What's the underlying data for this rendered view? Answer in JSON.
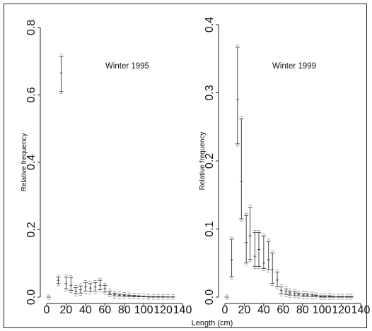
{
  "chart_data": [
    {
      "type": "scatter",
      "style": "point estimates with error bars",
      "title": "Winter 1995",
      "xlabel": "Length (cm)",
      "ylabel": "Relative frequency",
      "xlim": [
        0,
        140
      ],
      "ylim": [
        0,
        0.8
      ],
      "xticks": [
        "0",
        "20",
        "40",
        "60",
        "80",
        "100",
        "120",
        "140"
      ],
      "yticks": [
        "0.0",
        "0.2",
        "0.4",
        "0.6",
        "0.8"
      ],
      "grid": false,
      "series": [
        {
          "points": [
            {
              "x": 2,
              "y": 0.0,
              "lo": 0.0,
              "hi": 0.0
            },
            {
              "x": 12,
              "y": 0.05,
              "lo": 0.04,
              "hi": 0.06
            },
            {
              "x": 15,
              "y": 0.665,
              "lo": 0.61,
              "hi": 0.715
            },
            {
              "x": 20,
              "y": 0.04,
              "lo": 0.025,
              "hi": 0.06
            },
            {
              "x": 25,
              "y": 0.035,
              "lo": 0.02,
              "hi": 0.058
            },
            {
              "x": 30,
              "y": 0.018,
              "lo": 0.01,
              "hi": 0.028
            },
            {
              "x": 35,
              "y": 0.022,
              "lo": 0.012,
              "hi": 0.033
            },
            {
              "x": 40,
              "y": 0.03,
              "lo": 0.018,
              "hi": 0.043
            },
            {
              "x": 45,
              "y": 0.027,
              "lo": 0.016,
              "hi": 0.04
            },
            {
              "x": 50,
              "y": 0.03,
              "lo": 0.018,
              "hi": 0.043
            },
            {
              "x": 55,
              "y": 0.035,
              "lo": 0.022,
              "hi": 0.05
            },
            {
              "x": 60,
              "y": 0.025,
              "lo": 0.015,
              "hi": 0.035
            },
            {
              "x": 65,
              "y": 0.012,
              "lo": 0.007,
              "hi": 0.018
            },
            {
              "x": 70,
              "y": 0.008,
              "lo": 0.004,
              "hi": 0.012
            },
            {
              "x": 75,
              "y": 0.006,
              "lo": 0.003,
              "hi": 0.009
            },
            {
              "x": 80,
              "y": 0.005,
              "lo": 0.002,
              "hi": 0.007
            },
            {
              "x": 85,
              "y": 0.004,
              "lo": 0.002,
              "hi": 0.006
            },
            {
              "x": 90,
              "y": 0.003,
              "lo": 0.001,
              "hi": 0.005
            },
            {
              "x": 95,
              "y": 0.002,
              "lo": 0.001,
              "hi": 0.004
            },
            {
              "x": 100,
              "y": 0.002,
              "lo": 0.001,
              "hi": 0.003
            },
            {
              "x": 105,
              "y": 0.001,
              "lo": 0.0,
              "hi": 0.002
            },
            {
              "x": 110,
              "y": 0.001,
              "lo": 0.0,
              "hi": 0.002
            },
            {
              "x": 115,
              "y": 0.001,
              "lo": 0.0,
              "hi": 0.002
            },
            {
              "x": 120,
              "y": 0.001,
              "lo": 0.0,
              "hi": 0.002
            },
            {
              "x": 125,
              "y": 0.001,
              "lo": 0.0,
              "hi": 0.001
            },
            {
              "x": 130,
              "y": 0.001,
              "lo": 0.0,
              "hi": 0.001
            }
          ]
        }
      ]
    },
    {
      "type": "scatter",
      "style": "point estimates with error bars",
      "title": "Winter 1999",
      "xlabel": "Length (cm)",
      "ylabel": "Relative frequency",
      "xlim": [
        0,
        140
      ],
      "ylim": [
        0,
        0.4
      ],
      "xticks": [
        "0",
        "20",
        "40",
        "60",
        "80",
        "100",
        "120",
        "140"
      ],
      "yticks": [
        "0.0",
        "0.1",
        "0.2",
        "0.3",
        "0.4"
      ],
      "grid": false,
      "series": [
        {
          "points": [
            {
              "x": 2,
              "y": 0.0,
              "lo": 0.0,
              "hi": 0.0
            },
            {
              "x": 7,
              "y": 0.055,
              "lo": 0.03,
              "hi": 0.085
            },
            {
              "x": 13,
              "y": 0.29,
              "lo": 0.225,
              "hi": 0.367
            },
            {
              "x": 17,
              "y": 0.17,
              "lo": 0.115,
              "hi": 0.262
            },
            {
              "x": 22,
              "y": 0.08,
              "lo": 0.05,
              "hi": 0.12
            },
            {
              "x": 26,
              "y": 0.09,
              "lo": 0.055,
              "hi": 0.132
            },
            {
              "x": 31,
              "y": 0.06,
              "lo": 0.045,
              "hi": 0.095
            },
            {
              "x": 35,
              "y": 0.07,
              "lo": 0.045,
              "hi": 0.095
            },
            {
              "x": 40,
              "y": 0.05,
              "lo": 0.042,
              "hi": 0.09
            },
            {
              "x": 45,
              "y": 0.055,
              "lo": 0.04,
              "hi": 0.082
            },
            {
              "x": 49,
              "y": 0.04,
              "lo": 0.02,
              "hi": 0.065
            },
            {
              "x": 54,
              "y": 0.025,
              "lo": 0.015,
              "hi": 0.037
            },
            {
              "x": 58,
              "y": 0.01,
              "lo": 0.005,
              "hi": 0.015
            },
            {
              "x": 63,
              "y": 0.008,
              "lo": 0.004,
              "hi": 0.012
            },
            {
              "x": 67,
              "y": 0.006,
              "lo": 0.003,
              "hi": 0.009
            },
            {
              "x": 72,
              "y": 0.005,
              "lo": 0.002,
              "hi": 0.008
            },
            {
              "x": 76,
              "y": 0.004,
              "lo": 0.002,
              "hi": 0.006
            },
            {
              "x": 81,
              "y": 0.003,
              "lo": 0.001,
              "hi": 0.005
            },
            {
              "x": 85,
              "y": 0.003,
              "lo": 0.001,
              "hi": 0.005
            },
            {
              "x": 90,
              "y": 0.002,
              "lo": 0.001,
              "hi": 0.004
            },
            {
              "x": 94,
              "y": 0.002,
              "lo": 0.001,
              "hi": 0.003
            },
            {
              "x": 99,
              "y": 0.001,
              "lo": 0.0,
              "hi": 0.002
            },
            {
              "x": 103,
              "y": 0.001,
              "lo": 0.0,
              "hi": 0.002
            },
            {
              "x": 108,
              "y": 0.001,
              "lo": 0.0,
              "hi": 0.002
            },
            {
              "x": 112,
              "y": 0.001,
              "lo": 0.0,
              "hi": 0.001
            },
            {
              "x": 117,
              "y": 0.001,
              "lo": 0.0,
              "hi": 0.001
            },
            {
              "x": 121,
              "y": 0.0,
              "lo": 0.0,
              "hi": 0.001
            },
            {
              "x": 126,
              "y": 0.0,
              "lo": 0.0,
              "hi": 0.001
            },
            {
              "x": 130,
              "y": 0.0,
              "lo": 0.0,
              "hi": 0.001
            }
          ]
        }
      ]
    }
  ]
}
